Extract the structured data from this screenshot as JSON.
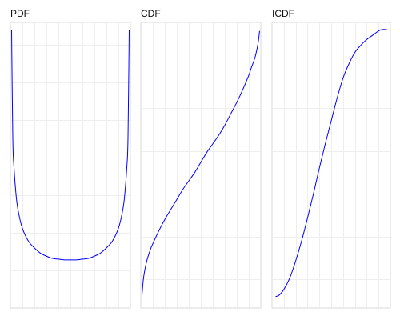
{
  "colors": {
    "line": "#0000ff",
    "grid": "#eeeeee",
    "frame": "#d9d9d9",
    "background": "#ffffff"
  },
  "chart_data": [
    {
      "type": "line",
      "title": "PDF",
      "grid": true,
      "xlim": [
        0,
        1
      ],
      "ylim": [
        0,
        3.8
      ],
      "x_grid": [
        0.1,
        0.2,
        0.3,
        0.4,
        0.5,
        0.6,
        0.7,
        0.8,
        0.9
      ],
      "y_grid": [
        0.5,
        1,
        1.5,
        2,
        2.5,
        3,
        3.5
      ],
      "series": [
        {
          "x": [
            0.01,
            0.02,
            0.03,
            0.05,
            0.07,
            0.1,
            0.15,
            0.2,
            0.25,
            0.3,
            0.35,
            0.4,
            0.45,
            0.5,
            0.55,
            0.6,
            0.65,
            0.7,
            0.75,
            0.8,
            0.85,
            0.9,
            0.93,
            0.95,
            0.97,
            0.98,
            0.99
          ],
          "y": [
            3.7,
            2.26,
            1.87,
            1.46,
            1.25,
            1.06,
            0.89,
            0.8,
            0.73,
            0.69,
            0.66,
            0.65,
            0.64,
            0.64,
            0.64,
            0.65,
            0.66,
            0.69,
            0.73,
            0.8,
            0.89,
            1.06,
            1.25,
            1.46,
            1.87,
            2.26,
            3.7
          ]
        }
      ]
    },
    {
      "type": "line",
      "title": "CDF",
      "grid": true,
      "xlim": [
        0,
        1
      ],
      "ylim": [
        0,
        1
      ],
      "x_grid": [
        0.1,
        0.2,
        0.3,
        0.4,
        0.5,
        0.6,
        0.7,
        0.8,
        0.9
      ],
      "y_grid": [
        0.1,
        0.25,
        0.4,
        0.55,
        0.7,
        0.85
      ],
      "series": [
        {
          "x": [
            0.01,
            0.02,
            0.03,
            0.05,
            0.08,
            0.1,
            0.15,
            0.2,
            0.25,
            0.3,
            0.35,
            0.4,
            0.45,
            0.5,
            0.55,
            0.6,
            0.65,
            0.7,
            0.75,
            0.8,
            0.85,
            0.9,
            0.92,
            0.95,
            0.97,
            0.98,
            0.99
          ],
          "y": [
            0.045,
            0.095,
            0.125,
            0.165,
            0.205,
            0.225,
            0.27,
            0.31,
            0.345,
            0.38,
            0.415,
            0.445,
            0.475,
            0.51,
            0.545,
            0.575,
            0.605,
            0.64,
            0.68,
            0.72,
            0.765,
            0.815,
            0.84,
            0.875,
            0.91,
            0.935,
            0.97
          ]
        }
      ]
    },
    {
      "type": "line",
      "title": "ICDF",
      "grid": true,
      "xlim": [
        0,
        1
      ],
      "ylim": [
        0,
        1
      ],
      "x_grid": [
        0.1,
        0.2,
        0.3,
        0.4,
        0.5,
        0.6,
        0.7,
        0.8,
        0.9
      ],
      "y_grid": [
        0.1,
        0.25,
        0.4,
        0.55,
        0.7,
        0.85
      ],
      "series": [
        {
          "x": [
            0.03,
            0.06,
            0.1,
            0.15,
            0.2,
            0.25,
            0.3,
            0.35,
            0.4,
            0.45,
            0.5,
            0.55,
            0.6,
            0.65,
            0.7,
            0.75,
            0.8,
            0.85,
            0.9,
            0.93,
            0.97
          ],
          "y": [
            0.04,
            0.045,
            0.065,
            0.105,
            0.165,
            0.235,
            0.315,
            0.4,
            0.49,
            0.575,
            0.655,
            0.735,
            0.805,
            0.855,
            0.895,
            0.92,
            0.94,
            0.955,
            0.97,
            0.975,
            0.975
          ]
        }
      ]
    }
  ]
}
